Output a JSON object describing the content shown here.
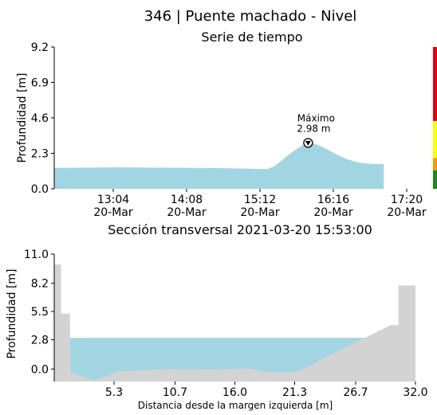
{
  "figure": {
    "title": "346 | Puente machado  - Nivel"
  },
  "colors": {
    "water": "#a2d5e2",
    "ground": "#d3d3d3",
    "alert_levels": [
      "#e8000b",
      "#ffff00",
      "#ff9900",
      "#1a8a1a"
    ]
  },
  "chart_data": [
    {
      "type": "area",
      "title": "Serie de tiempo",
      "ylabel": "Profundidad [m]",
      "xlabel": "",
      "ylim": [
        0.0,
        9.2
      ],
      "yticks": [
        "0.0",
        "2.3",
        "4.6",
        "6.9",
        "9.2"
      ],
      "xticks": [
        {
          "time": "13:04",
          "date": "20-Mar"
        },
        {
          "time": "14:08",
          "date": "20-Mar"
        },
        {
          "time": "15:12",
          "date": "20-Mar"
        },
        {
          "time": "16:16",
          "date": "20-Mar"
        },
        {
          "time": "17:20",
          "date": "20-Mar"
        }
      ],
      "x_minutes_from_1304": [
        -55,
        -30,
        0,
        20,
        40,
        60,
        80,
        100,
        120,
        130,
        135,
        140,
        145,
        150,
        155,
        160,
        165,
        170,
        175,
        180,
        185,
        190,
        195,
        200,
        205,
        210,
        215,
        220,
        225,
        230,
        236
      ],
      "y": [
        1.35,
        1.37,
        1.39,
        1.38,
        1.37,
        1.36,
        1.35,
        1.33,
        1.3,
        1.28,
        1.3,
        1.45,
        1.72,
        2.02,
        2.32,
        2.58,
        2.82,
        2.98,
        2.93,
        2.8,
        2.62,
        2.42,
        2.22,
        2.05,
        1.9,
        1.78,
        1.7,
        1.65,
        1.62,
        1.6,
        1.6
      ],
      "annotation": {
        "label": "Máximo",
        "value": "2.98 m",
        "x_minutes_from_1304": 170,
        "y": 2.98
      },
      "alert_levels": [
        {
          "from": 0.0,
          "to": 1.2,
          "color": "#1a8a1a"
        },
        {
          "from": 1.2,
          "to": 2.0,
          "color": "#ff9900"
        },
        {
          "from": 2.0,
          "to": 4.4,
          "color": "#ffff00"
        },
        {
          "from": 4.4,
          "to": 9.2,
          "color": "#e8000b"
        }
      ]
    },
    {
      "type": "area",
      "title": "Sección transversal 2021-03-20 15:53:00",
      "xlabel": "Distancia desde la margen izquierda [m]",
      "ylabel": "Profundidad [m]",
      "xlim": [
        0.0,
        32.0
      ],
      "ylim": [
        -1.2,
        11.0
      ],
      "xticks": [
        "5.3",
        "10.7",
        "16.0",
        "21.3",
        "26.7",
        "32.0"
      ],
      "yticks": [
        "0.0",
        "2.8",
        "5.5",
        "8.2",
        "11.0"
      ],
      "water_level": 2.98,
      "bed_profile": {
        "x": [
          0,
          0.6,
          0.6,
          1.4,
          1.4,
          3.5,
          5.8,
          10,
          14,
          17,
          19,
          21.3,
          22.5,
          23.5,
          26.8,
          28.5,
          29.8,
          30.5,
          30.5,
          32.0,
          32.0,
          31.5,
          31.5,
          32.0
        ],
        "y": [
          10.0,
          10.0,
          5.3,
          5.3,
          -0.3,
          -1.1,
          -0.2,
          0.0,
          -0.05,
          0.05,
          -0.3,
          -0.3,
          0.2,
          0.8,
          2.6,
          3.5,
          4.2,
          4.2,
          8.0,
          8.0,
          10.0,
          10.0,
          10.0,
          10.0
        ]
      }
    }
  ]
}
